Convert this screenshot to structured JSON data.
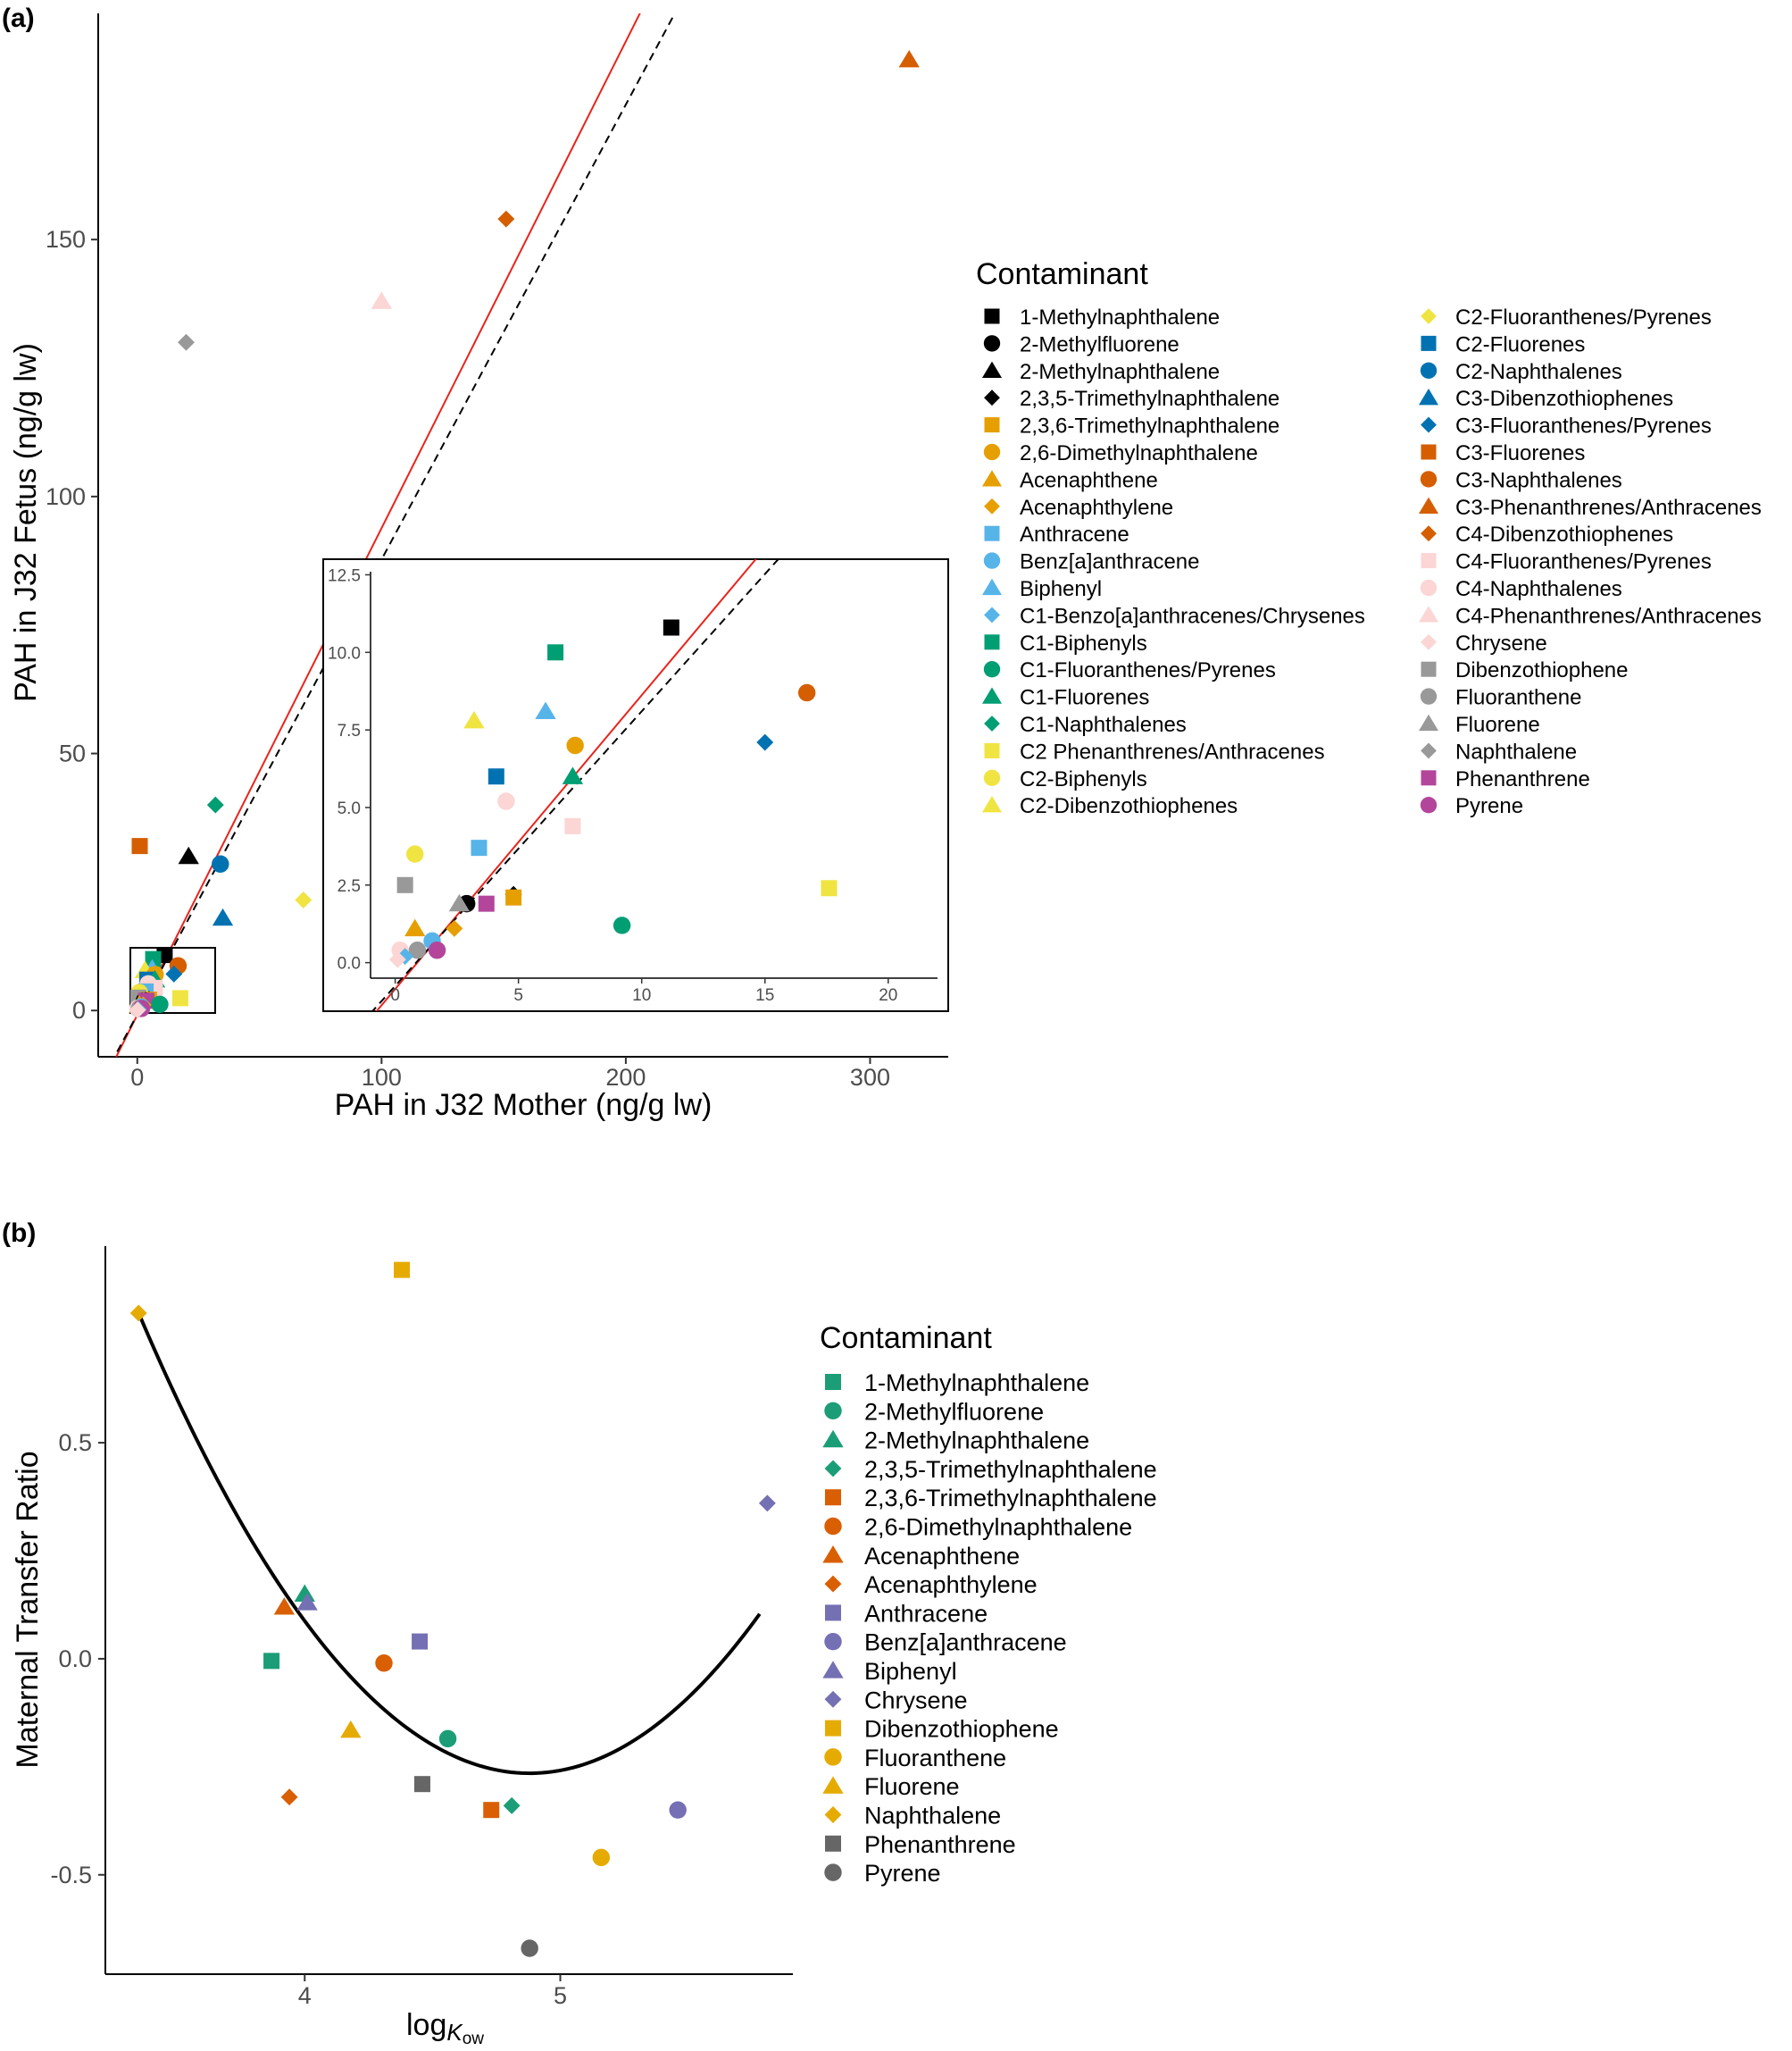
{
  "figure": {
    "panel_a_label": "(a)",
    "panel_b_label": "(b)"
  },
  "colors": {
    "red_fit": "#e8241c",
    "dashed_line": "#000000",
    "curve": "#000000",
    "axis": "#000000",
    "tick_text": "#4d4d4d"
  },
  "chart_data": [
    {
      "id": "panel_a",
      "type": "scatter",
      "xlabel": "PAH in J32 Mother (ng/g lw)",
      "ylabel": "PAH in J32 Fetus (ng/g lw)",
      "xlim": [
        -16,
        332
      ],
      "ylim": [
        -9,
        194
      ],
      "xticks": [
        0,
        100,
        200,
        300
      ],
      "yticks": [
        0,
        50,
        100,
        150
      ],
      "lines": [
        {
          "name": "regression",
          "style": "solid",
          "color": "#e8241c",
          "slope": 0.947,
          "intercept": -0.85
        },
        {
          "name": "one-to-one",
          "style": "dashed",
          "color": "#000000",
          "slope": 0.885,
          "intercept": -0.75
        }
      ],
      "inset": {
        "xlim": [
          -1,
          22
        ],
        "ylim": [
          -0.5,
          12.6
        ],
        "xticks": [
          0,
          5,
          10,
          15,
          20
        ],
        "yticks": [
          0.0,
          2.5,
          5.0,
          7.5,
          10.0,
          12.5
        ],
        "tick_labels_y": [
          "0.0",
          "2.5",
          "5.0",
          "7.5",
          "10.0",
          "12.5"
        ]
      },
      "legend": {
        "title": "Contaminant",
        "col1": [
          {
            "label": "1-Methylnaphthalene",
            "shape": "square",
            "color": "#000000"
          },
          {
            "label": "2-Methylfluorene",
            "shape": "circle",
            "color": "#000000"
          },
          {
            "label": "2-Methylnaphthalene",
            "shape": "triangle",
            "color": "#000000"
          },
          {
            "label": "2,3,5-Trimethylnaphthalene",
            "shape": "diamond",
            "color": "#000000"
          },
          {
            "label": "2,3,6-Trimethylnaphthalene",
            "shape": "square",
            "color": "#e69f00"
          },
          {
            "label": "2,6-Dimethylnaphthalene",
            "shape": "circle",
            "color": "#e69f00"
          },
          {
            "label": "Acenaphthene",
            "shape": "triangle",
            "color": "#e69f00"
          },
          {
            "label": "Acenaphthylene",
            "shape": "diamond",
            "color": "#e69f00"
          },
          {
            "label": "Anthracene",
            "shape": "square",
            "color": "#56b4e9"
          },
          {
            "label": "Benz[a]anthracene",
            "shape": "circle",
            "color": "#56b4e9"
          },
          {
            "label": "Biphenyl",
            "shape": "triangle",
            "color": "#56b4e9"
          },
          {
            "label": "C1-Benzo[a]anthracenes/Chrysenes",
            "shape": "diamond",
            "color": "#56b4e9"
          },
          {
            "label": "C1-Biphenyls",
            "shape": "square",
            "color": "#009e73"
          },
          {
            "label": "C1-Fluoranthenes/Pyrenes",
            "shape": "circle",
            "color": "#009e73"
          },
          {
            "label": "C1-Fluorenes",
            "shape": "triangle",
            "color": "#009e73"
          },
          {
            "label": "C1-Naphthalenes",
            "shape": "diamond",
            "color": "#009e73"
          },
          {
            "label": "C2 Phenanthrenes/Anthracenes",
            "shape": "square",
            "color": "#f0e442"
          },
          {
            "label": "C2-Biphenyls",
            "shape": "circle",
            "color": "#f0e442"
          },
          {
            "label": "C2-Dibenzothiophenes",
            "shape": "triangle",
            "color": "#f0e442"
          }
        ],
        "col2": [
          {
            "label": "C2-Fluoranthenes/Pyrenes",
            "shape": "diamond",
            "color": "#f0e442"
          },
          {
            "label": "C2-Fluorenes",
            "shape": "square",
            "color": "#0072b2"
          },
          {
            "label": "C2-Naphthalenes",
            "shape": "circle",
            "color": "#0072b2"
          },
          {
            "label": "C3-Dibenzothiophenes",
            "shape": "triangle",
            "color": "#0072b2"
          },
          {
            "label": "C3-Fluoranthenes/Pyrenes",
            "shape": "diamond",
            "color": "#0072b2"
          },
          {
            "label": "C3-Fluorenes",
            "shape": "square",
            "color": "#d55e00"
          },
          {
            "label": "C3-Naphthalenes",
            "shape": "circle",
            "color": "#d55e00"
          },
          {
            "label": "C3-Phenanthrenes/Anthracenes",
            "shape": "triangle",
            "color": "#d55e00"
          },
          {
            "label": "C4-Dibenzothiophenes",
            "shape": "diamond",
            "color": "#d55e00"
          },
          {
            "label": "C4-Fluoranthenes/Pyrenes",
            "shape": "square",
            "color": "#fcd5d5"
          },
          {
            "label": "C4-Naphthalenes",
            "shape": "circle",
            "color": "#fcd5d5"
          },
          {
            "label": "C4-Phenanthrenes/Anthracenes",
            "shape": "triangle",
            "color": "#fcd5d5"
          },
          {
            "label": "Chrysene",
            "shape": "diamond",
            "color": "#fcd5d5"
          },
          {
            "label": "Dibenzothiophene",
            "shape": "square",
            "color": "#999999"
          },
          {
            "label": "Fluoranthene",
            "shape": "circle",
            "color": "#999999"
          },
          {
            "label": "Fluorene",
            "shape": "triangle",
            "color": "#999999"
          },
          {
            "label": "Naphthalene",
            "shape": "diamond",
            "color": "#999999"
          },
          {
            "label": "Phenanthrene",
            "shape": "square",
            "color": "#b3469a"
          },
          {
            "label": "Pyrene",
            "shape": "circle",
            "color": "#b3469a"
          }
        ]
      },
      "points": [
        {
          "name": "C3-Phenanthrenes/Anthracenes",
          "x": 316,
          "y": 185,
          "shape": "triangle",
          "color": "#d55e00"
        },
        {
          "name": "C4-Dibenzothiophenes",
          "x": 151,
          "y": 154,
          "shape": "diamond",
          "color": "#d55e00"
        },
        {
          "name": "C4-Phenanthrenes/Anthracenes",
          "x": 100,
          "y": 138,
          "shape": "triangle",
          "color": "#fcd5d5"
        },
        {
          "name": "Naphthalene",
          "x": 20,
          "y": 130,
          "shape": "diamond",
          "color": "#999999"
        },
        {
          "name": "C1-Naphthalenes",
          "x": 32,
          "y": 40,
          "shape": "diamond",
          "color": "#009e73"
        },
        {
          "name": "C3-Fluorenes",
          "x": 1,
          "y": 32,
          "shape": "square",
          "color": "#d55e00"
        },
        {
          "name": "2-Methylnaphthalene",
          "x": 21,
          "y": 30,
          "shape": "triangle",
          "color": "#000000"
        },
        {
          "name": "C2-Naphthalenes",
          "x": 34,
          "y": 28.5,
          "shape": "circle",
          "color": "#0072b2"
        },
        {
          "name": "C2-Fluoranthenes/Pyrenes",
          "x": 68,
          "y": 21.5,
          "shape": "diamond",
          "color": "#f0e442"
        },
        {
          "name": "C3-Dibenzothiophenes",
          "x": 35,
          "y": 18,
          "shape": "triangle",
          "color": "#0072b2"
        },
        {
          "name": "1-Methylnaphthalene",
          "x": 11.2,
          "y": 10.8,
          "shape": "square",
          "color": "#000000"
        },
        {
          "name": "C3-Naphthalenes",
          "x": 16.7,
          "y": 8.7,
          "shape": "circle",
          "color": "#d55e00"
        },
        {
          "name": "C3-Fluoranthenes/Pyrenes",
          "x": 15,
          "y": 7.1,
          "shape": "diamond",
          "color": "#0072b2"
        },
        {
          "name": "C1-Biphenyls",
          "x": 6.5,
          "y": 10.0,
          "shape": "square",
          "color": "#009e73"
        },
        {
          "name": "Biphenyl",
          "x": 6.1,
          "y": 8.1,
          "shape": "triangle",
          "color": "#56b4e9"
        },
        {
          "name": "C2-Dibenzothiophenes",
          "x": 3.2,
          "y": 7.8,
          "shape": "triangle",
          "color": "#f0e442"
        },
        {
          "name": "2,6-Dimethylnaphthalene",
          "x": 7.3,
          "y": 7.0,
          "shape": "circle",
          "color": "#e69f00"
        },
        {
          "name": "C2-Fluorenes",
          "x": 4.1,
          "y": 6.0,
          "shape": "square",
          "color": "#0072b2"
        },
        {
          "name": "C1-Fluorenes",
          "x": 7.2,
          "y": 6.0,
          "shape": "triangle",
          "color": "#009e73"
        },
        {
          "name": "C4-Naphthalenes",
          "x": 4.5,
          "y": 5.2,
          "shape": "circle",
          "color": "#fcd5d5"
        },
        {
          "name": "C4-Fluoranthenes/Pyrenes",
          "x": 7.2,
          "y": 4.4,
          "shape": "square",
          "color": "#fcd5d5"
        },
        {
          "name": "Anthracene",
          "x": 3.4,
          "y": 3.7,
          "shape": "square",
          "color": "#56b4e9"
        },
        {
          "name": "C2-Biphenyls",
          "x": 0.8,
          "y": 3.5,
          "shape": "circle",
          "color": "#f0e442"
        },
        {
          "name": "Dibenzothiophene",
          "x": 0.4,
          "y": 2.5,
          "shape": "square",
          "color": "#999999"
        },
        {
          "name": "C2 Phenanthrenes/Anthracenes",
          "x": 17.6,
          "y": 2.4,
          "shape": "square",
          "color": "#f0e442"
        },
        {
          "name": "2,3,5-Trimethylnaphthalene",
          "x": 4.8,
          "y": 2.2,
          "shape": "diamond",
          "color": "#000000"
        },
        {
          "name": "2,3,6-Trimethylnaphthalene",
          "x": 4.8,
          "y": 2.1,
          "shape": "square",
          "color": "#e69f00"
        },
        {
          "name": "2-Methylfluorene",
          "x": 2.9,
          "y": 1.9,
          "shape": "circle",
          "color": "#000000"
        },
        {
          "name": "Fluorene",
          "x": 2.6,
          "y": 1.9,
          "shape": "triangle",
          "color": "#999999"
        },
        {
          "name": "Phenanthrene",
          "x": 3.7,
          "y": 1.9,
          "shape": "square",
          "color": "#b3469a"
        },
        {
          "name": "C1-Fluoranthenes/Pyrenes",
          "x": 9.2,
          "y": 1.2,
          "shape": "circle",
          "color": "#009e73"
        },
        {
          "name": "Acenaphthene",
          "x": 0.8,
          "y": 1.1,
          "shape": "triangle",
          "color": "#e69f00"
        },
        {
          "name": "Acenaphthylene",
          "x": 2.4,
          "y": 1.1,
          "shape": "diamond",
          "color": "#e69f00"
        },
        {
          "name": "Benz[a]anthracene",
          "x": 1.5,
          "y": 0.7,
          "shape": "circle",
          "color": "#56b4e9"
        },
        {
          "name": "C4-Naphthalenes (2)",
          "x": 0.2,
          "y": 0.4,
          "shape": "circle",
          "color": "#fcd5d5"
        },
        {
          "name": "Fluoranthene",
          "x": 0.9,
          "y": 0.4,
          "shape": "circle",
          "color": "#999999"
        },
        {
          "name": "Pyrene",
          "x": 1.7,
          "y": 0.4,
          "shape": "circle",
          "color": "#b3469a"
        },
        {
          "name": "C1-Benzo[a]anthracenes/Chrysenes",
          "x": 0.4,
          "y": 0.2,
          "shape": "diamond",
          "color": "#56b4e9"
        },
        {
          "name": "Chrysene",
          "x": 0.1,
          "y": 0.1,
          "shape": "diamond",
          "color": "#fcd5d5"
        }
      ]
    },
    {
      "id": "panel_b",
      "type": "scatter",
      "xlabel": "log",
      "xlabel_sub": "K",
      "xlabel_subsub": "ow",
      "ylabel": "Maternal Transfer Ratio",
      "xlim": [
        3.22,
        5.91
      ],
      "ylim": [
        -0.73,
        0.955
      ],
      "xticks": [
        4,
        5
      ],
      "yticks": [
        0.5,
        0.0,
        -0.5
      ],
      "ytick_labels": [
        "0.5",
        "0.0",
        "-0.5"
      ],
      "curve": {
        "name": "quadratic fit",
        "color": "#000000",
        "xmin": 3.35,
        "xmax": 5.78,
        "vertex_x": 4.88,
        "vertex_y": -0.265,
        "a": 0.4552
      },
      "legend": {
        "title": "Contaminant",
        "items": [
          {
            "label": "1-Methylnaphthalene",
            "shape": "square",
            "color": "#1b9e77"
          },
          {
            "label": "2-Methylfluorene",
            "shape": "circle",
            "color": "#1b9e77"
          },
          {
            "label": "2-Methylnaphthalene",
            "shape": "triangle",
            "color": "#1b9e77"
          },
          {
            "label": "2,3,5-Trimethylnaphthalene",
            "shape": "diamond",
            "color": "#1b9e77"
          },
          {
            "label": "2,3,6-Trimethylnaphthalene",
            "shape": "square",
            "color": "#d95f02"
          },
          {
            "label": "2,6-Dimethylnaphthalene",
            "shape": "circle",
            "color": "#d95f02"
          },
          {
            "label": "Acenaphthene",
            "shape": "triangle",
            "color": "#d95f02"
          },
          {
            "label": "Acenaphthylene",
            "shape": "diamond",
            "color": "#d95f02"
          },
          {
            "label": "Anthracene",
            "shape": "square",
            "color": "#7570b3"
          },
          {
            "label": "Benz[a]anthracene",
            "shape": "circle",
            "color": "#7570b3"
          },
          {
            "label": "Biphenyl",
            "shape": "triangle",
            "color": "#7570b3"
          },
          {
            "label": "Chrysene",
            "shape": "diamond",
            "color": "#7570b3"
          },
          {
            "label": "Dibenzothiophene",
            "shape": "square",
            "color": "#e6ab02"
          },
          {
            "label": "Fluoranthene",
            "shape": "circle",
            "color": "#e6ab02"
          },
          {
            "label": "Fluorene",
            "shape": "triangle",
            "color": "#e6ab02"
          },
          {
            "label": "Naphthalene",
            "shape": "diamond",
            "color": "#e6ab02"
          },
          {
            "label": "Phenanthrene",
            "shape": "square",
            "color": "#666666"
          },
          {
            "label": "Pyrene",
            "shape": "circle",
            "color": "#666666"
          }
        ]
      },
      "points": [
        {
          "name": "Naphthalene",
          "x": 3.35,
          "y": 0.8,
          "shape": "diamond",
          "color": "#e6ab02"
        },
        {
          "name": "Dibenzothiophene",
          "x": 4.38,
          "y": 0.9,
          "shape": "square",
          "color": "#e6ab02"
        },
        {
          "name": "Chrysene",
          "x": 5.81,
          "y": 0.36,
          "shape": "diamond",
          "color": "#7570b3"
        },
        {
          "name": "2-Methylnaphthalene",
          "x": 4.0,
          "y": 0.15,
          "shape": "triangle",
          "color": "#1b9e77"
        },
        {
          "name": "Biphenyl",
          "x": 4.01,
          "y": 0.13,
          "shape": "triangle",
          "color": "#7570b3"
        },
        {
          "name": "Acenaphthene",
          "x": 3.92,
          "y": 0.12,
          "shape": "triangle",
          "color": "#d95f02"
        },
        {
          "name": "Anthracene",
          "x": 4.45,
          "y": 0.04,
          "shape": "square",
          "color": "#7570b3"
        },
        {
          "name": "1-Methylnaphthalene",
          "x": 3.87,
          "y": -0.005,
          "shape": "square",
          "color": "#1b9e77"
        },
        {
          "name": "2,6-Dimethylnaphthalene",
          "x": 4.31,
          "y": -0.01,
          "shape": "circle",
          "color": "#d95f02"
        },
        {
          "name": "Fluorene",
          "x": 4.18,
          "y": -0.165,
          "shape": "triangle",
          "color": "#e6ab02"
        },
        {
          "name": "2-Methylfluorene",
          "x": 4.56,
          "y": -0.185,
          "shape": "circle",
          "color": "#1b9e77"
        },
        {
          "name": "Phenanthrene",
          "x": 4.46,
          "y": -0.29,
          "shape": "square",
          "color": "#666666"
        },
        {
          "name": "Acenaphthylene",
          "x": 3.94,
          "y": -0.32,
          "shape": "diamond",
          "color": "#d95f02"
        },
        {
          "name": "2,3,6-Trimethylnaphthalene",
          "x": 4.73,
          "y": -0.35,
          "shape": "square",
          "color": "#d95f02"
        },
        {
          "name": "2,3,5-Trimethylnaphthalene",
          "x": 4.81,
          "y": -0.34,
          "shape": "diamond",
          "color": "#1b9e77"
        },
        {
          "name": "Benz[a]anthracene",
          "x": 5.46,
          "y": -0.35,
          "shape": "circle",
          "color": "#7570b3"
        },
        {
          "name": "Fluoranthene",
          "x": 5.16,
          "y": -0.46,
          "shape": "circle",
          "color": "#e6ab02"
        },
        {
          "name": "Pyrene",
          "x": 4.88,
          "y": -0.67,
          "shape": "circle",
          "color": "#666666"
        }
      ]
    }
  ]
}
